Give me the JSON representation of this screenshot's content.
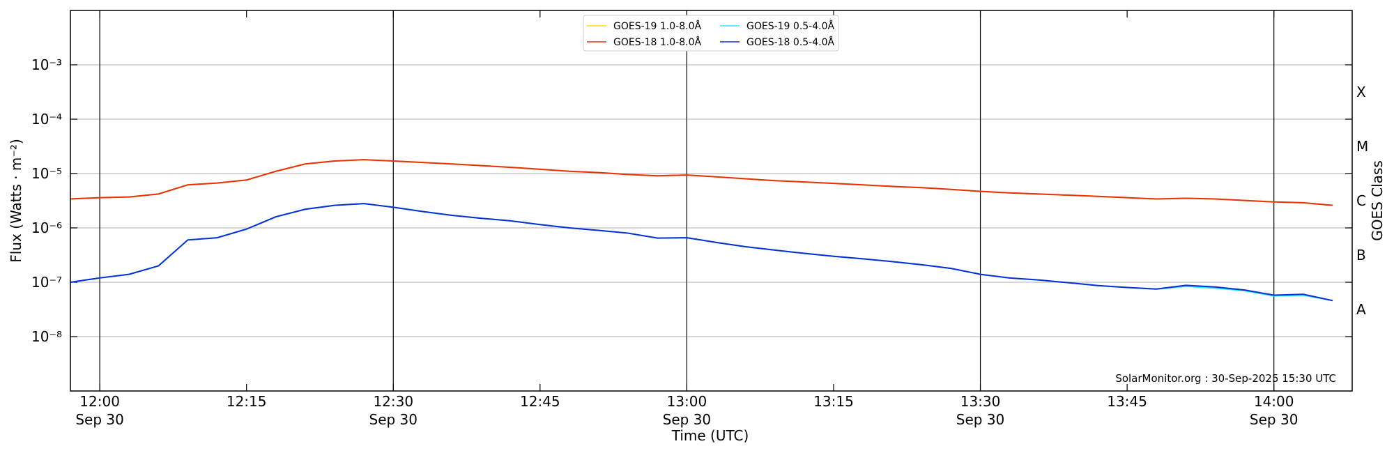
{
  "chart_data": {
    "type": "line",
    "xlabel": "Time (UTC)",
    "ylabel": "Flux (Watts · m⁻²)",
    "y2label": "GOES Class",
    "annotation": "SolarMonitor.org : 30-Sep-2025 15:30 UTC",
    "log_scale": true,
    "grid": true,
    "legend": "top-center",
    "x": [
      717,
      720,
      723,
      726,
      729,
      732,
      735,
      738,
      741,
      744,
      747,
      750,
      753,
      756,
      759,
      762,
      765,
      768,
      771,
      774,
      777,
      780,
      783,
      786,
      789,
      792,
      795,
      798,
      801,
      804,
      807,
      810,
      813,
      816,
      819,
      822,
      825,
      828,
      831,
      834,
      837,
      840,
      843,
      846
    ],
    "xlim": [
      717,
      848
    ],
    "xticks": [
      {
        "value": 720,
        "label": "12:00\nSep 30"
      },
      {
        "value": 735,
        "label": "12:15"
      },
      {
        "value": 750,
        "label": "12:30\nSep 30"
      },
      {
        "value": 765,
        "label": "12:45"
      },
      {
        "value": 780,
        "label": "13:00\nSep 30"
      },
      {
        "value": 795,
        "label": "13:15"
      },
      {
        "value": 810,
        "label": "13:30\nSep 30"
      },
      {
        "value": 825,
        "label": "13:45"
      },
      {
        "value": 840,
        "label": "14:00\nSep 30"
      }
    ],
    "vlines": [
      720,
      750,
      780,
      810,
      840
    ],
    "ylim": [
      1e-09,
      0.01
    ],
    "yticks": [
      {
        "value": 1e-08,
        "label": "10⁻⁸"
      },
      {
        "value": 1e-07,
        "label": "10⁻⁷"
      },
      {
        "value": 1e-06,
        "label": "10⁻⁶"
      },
      {
        "value": 1e-05,
        "label": "10⁻⁵"
      },
      {
        "value": 0.0001,
        "label": "10⁻⁴"
      },
      {
        "value": 0.001,
        "label": "10⁻³"
      }
    ],
    "y2lim": [
      1e-09,
      0.01
    ],
    "y2ticks": [
      {
        "value": 0.000316,
        "label": "X"
      },
      {
        "value": 3.16e-05,
        "label": "M"
      },
      {
        "value": 3.16e-06,
        "label": "C"
      },
      {
        "value": 3.16e-07,
        "label": "B"
      },
      {
        "value": 3.16e-08,
        "label": "A"
      }
    ],
    "series": [
      {
        "name": "GOES-19 1.0-8.0Å",
        "color": "#ffd700",
        "values": [
          3.4e-06,
          3.6e-06,
          3.7e-06,
          4.2e-06,
          6.2e-06,
          6.7e-06,
          7.6e-06,
          1.1e-05,
          1.5e-05,
          1.7e-05,
          1.8e-05,
          1.7e-05,
          1.6e-05,
          1.5e-05,
          1.4e-05,
          1.3e-05,
          1.2e-05,
          1.1e-05,
          1.04e-05,
          9.6e-06,
          9.1e-06,
          9.4e-06,
          8.7e-06,
          8e-06,
          7.4e-06,
          7e-06,
          6.6e-06,
          6.2e-06,
          5.8e-06,
          5.5e-06,
          5.1e-06,
          4.7e-06,
          4.4e-06,
          4.2e-06,
          4e-06,
          3.8e-06,
          3.6e-06,
          3.4e-06,
          3.5e-06,
          3.4e-06,
          3.2e-06,
          3e-06,
          2.9e-06,
          2.6e-06
        ]
      },
      {
        "name": "GOES-18 1.0-8.0Å",
        "color": "#e8300f",
        "values": [
          3.4e-06,
          3.6e-06,
          3.7e-06,
          4.2e-06,
          6.2e-06,
          6.7e-06,
          7.6e-06,
          1.1e-05,
          1.5e-05,
          1.7e-05,
          1.8e-05,
          1.7e-05,
          1.6e-05,
          1.5e-05,
          1.4e-05,
          1.3e-05,
          1.2e-05,
          1.1e-05,
          1.04e-05,
          9.6e-06,
          9.1e-06,
          9.4e-06,
          8.7e-06,
          8e-06,
          7.4e-06,
          7e-06,
          6.6e-06,
          6.2e-06,
          5.8e-06,
          5.5e-06,
          5.1e-06,
          4.7e-06,
          4.4e-06,
          4.2e-06,
          4e-06,
          3.8e-06,
          3.6e-06,
          3.4e-06,
          3.5e-06,
          3.4e-06,
          3.2e-06,
          3e-06,
          2.9e-06,
          2.6e-06
        ]
      },
      {
        "name": "GOES-19 0.5-4.0Å",
        "color": "#22e5f0",
        "values": [
          1e-07,
          1.2e-07,
          1.4e-07,
          2e-07,
          6e-07,
          6.6e-07,
          9.5e-07,
          1.6e-06,
          2.2e-06,
          2.6e-06,
          2.8e-06,
          2.4e-06,
          2e-06,
          1.7e-06,
          1.5e-06,
          1.35e-06,
          1.15e-06,
          1e-06,
          9e-07,
          8e-07,
          6.5e-07,
          6.6e-07,
          5.4e-07,
          4.5e-07,
          3.9e-07,
          3.4e-07,
          3e-07,
          2.7e-07,
          2.4e-07,
          2.1e-07,
          1.8e-07,
          1.4e-07,
          1.2e-07,
          1.1e-07,
          9.8e-08,
          8.7e-08,
          8e-08,
          7.5e-08,
          8.4e-08,
          7.8e-08,
          7e-08,
          5.6e-08,
          5.8e-08,
          4.6e-08
        ]
      },
      {
        "name": "GOES-18 0.5-4.0Å",
        "color": "#0a2fd8",
        "values": [
          1e-07,
          1.2e-07,
          1.4e-07,
          2e-07,
          6e-07,
          6.6e-07,
          9.5e-07,
          1.6e-06,
          2.2e-06,
          2.6e-06,
          2.8e-06,
          2.4e-06,
          2e-06,
          1.7e-06,
          1.5e-06,
          1.35e-06,
          1.15e-06,
          1e-06,
          9e-07,
          8e-07,
          6.5e-07,
          6.6e-07,
          5.4e-07,
          4.5e-07,
          3.9e-07,
          3.4e-07,
          3e-07,
          2.7e-07,
          2.4e-07,
          2.1e-07,
          1.8e-07,
          1.4e-07,
          1.2e-07,
          1.1e-07,
          9.8e-08,
          8.7e-08,
          8e-08,
          7.5e-08,
          8.8e-08,
          8.2e-08,
          7.2e-08,
          5.8e-08,
          6e-08,
          4.6e-08
        ]
      }
    ]
  }
}
